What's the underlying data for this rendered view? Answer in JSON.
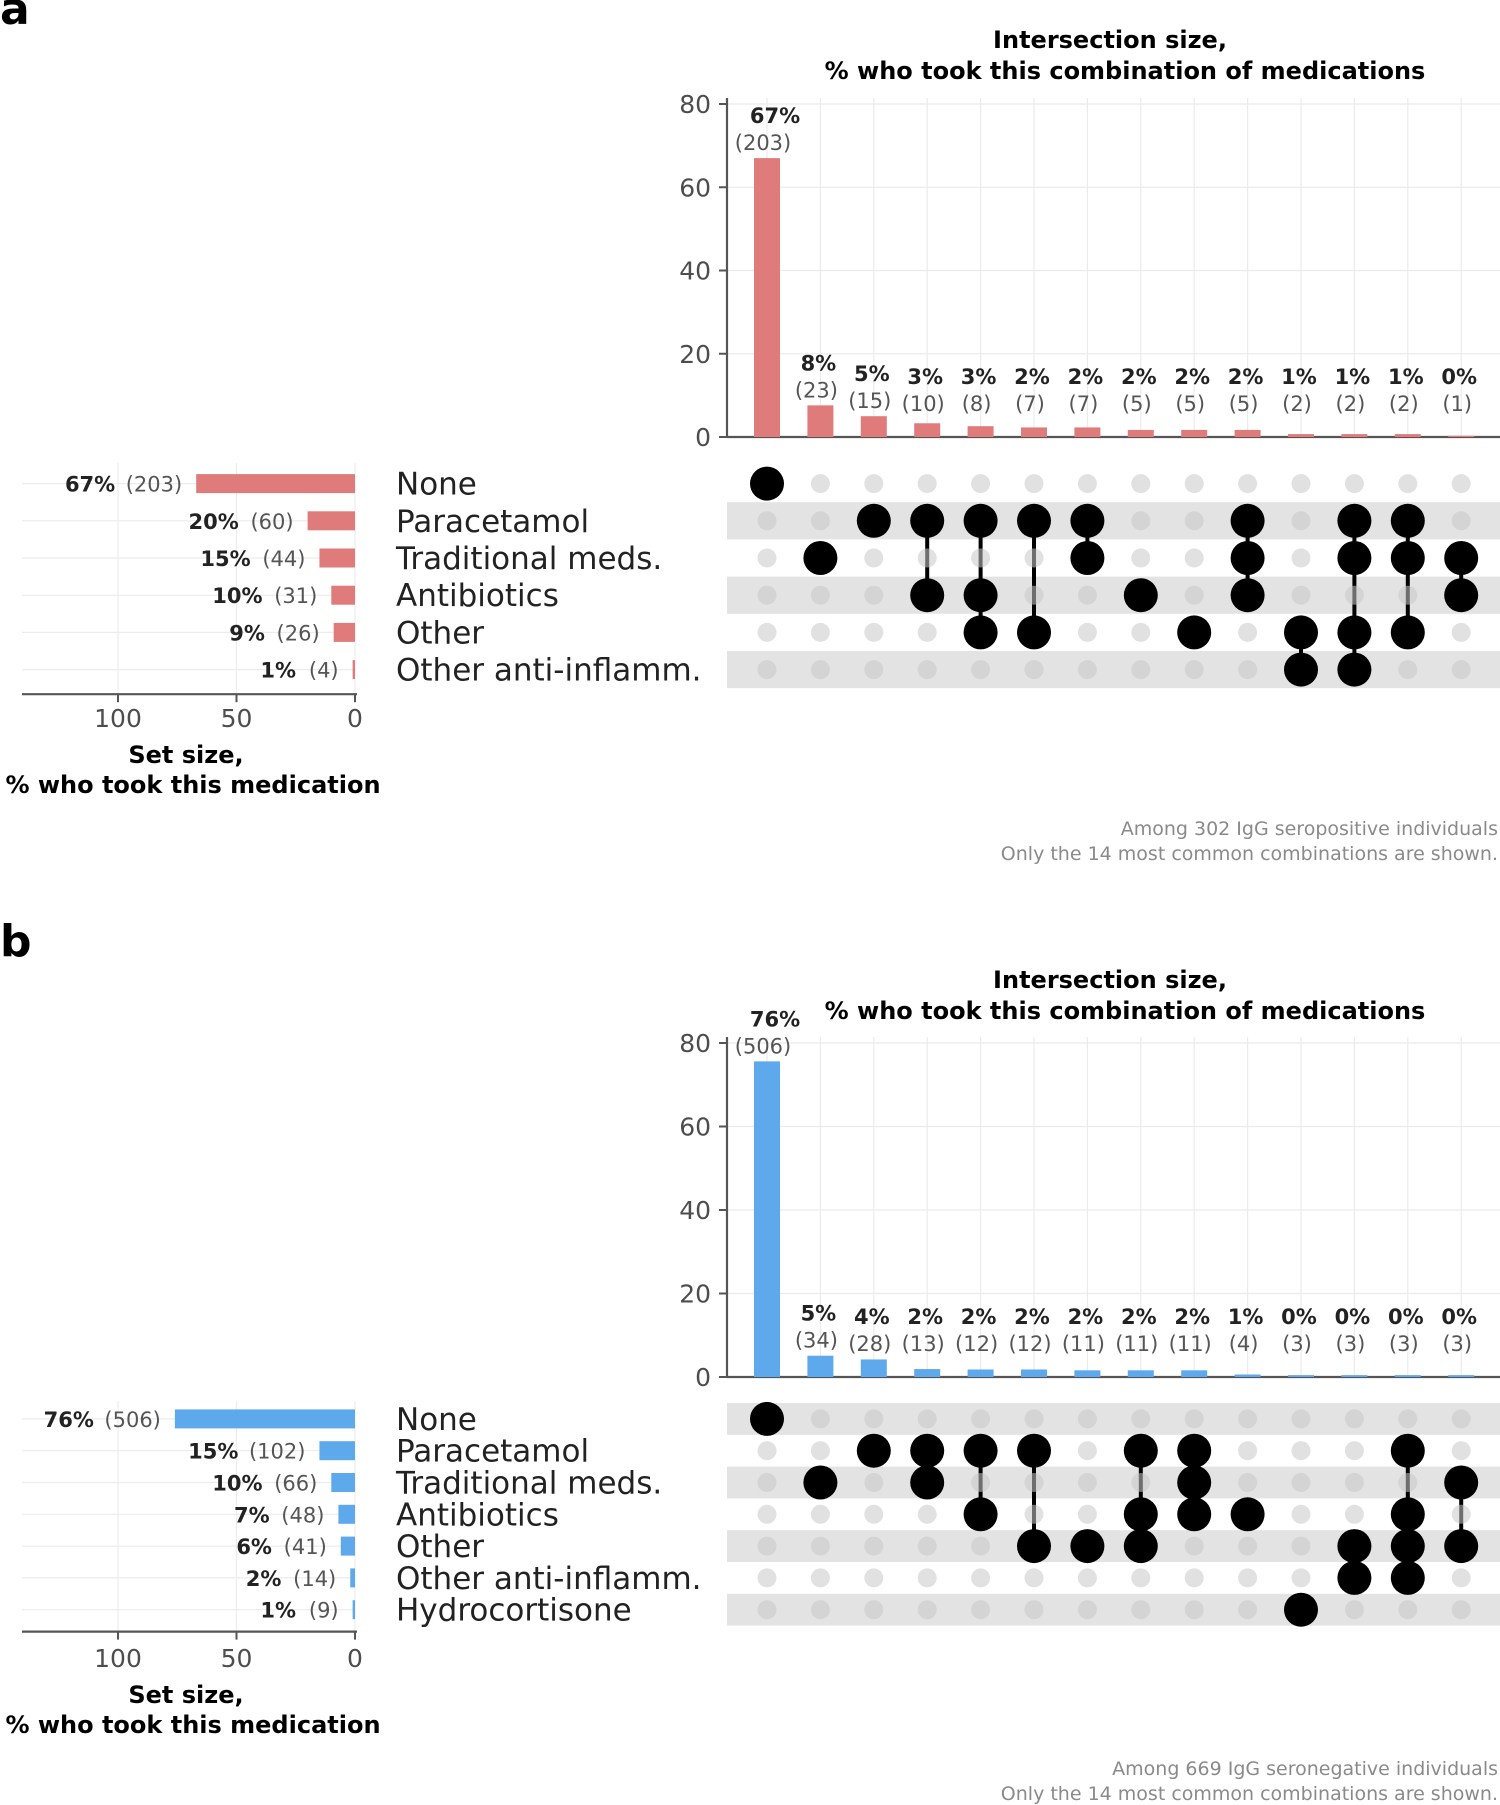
{
  "chart_data": [
    {
      "panel": "a",
      "type": "bar",
      "subtype": "upset",
      "color": "#e07b7b",
      "title_line1": "Intersection size,",
      "title_line2": "% who took this combination of medications",
      "set_title_line1": "Set size,",
      "set_title_line2": "% who took this medication",
      "ylim": [
        0,
        80
      ],
      "yticks": [
        "0",
        "20",
        "40",
        "60",
        "80"
      ],
      "set_ticks": [
        "100",
        "50",
        "0"
      ],
      "set_xlim": [
        0,
        140
      ],
      "sets": [
        {
          "name": "None",
          "value": 67,
          "pct": "67%",
          "count": "(203)"
        },
        {
          "name": "Paracetamol",
          "value": 20,
          "pct": "20%",
          "count": "(60)"
        },
        {
          "name": "Traditional meds.",
          "value": 15,
          "pct": "15%",
          "count": "(44)"
        },
        {
          "name": "Antibiotics",
          "value": 10,
          "pct": "10%",
          "count": "(31)"
        },
        {
          "name": "Other",
          "value": 9,
          "pct": "9%",
          "count": "(26)"
        },
        {
          "name": "Other anti-inflamm.",
          "value": 1,
          "pct": "1%",
          "count": "(4)"
        }
      ],
      "intersections": [
        {
          "value": 67,
          "pct": "67%",
          "count": "(203)",
          "members": [
            0
          ]
        },
        {
          "value": 7.6,
          "pct": "8%",
          "count": "(23)",
          "members": [
            2
          ]
        },
        {
          "value": 5,
          "pct": "5%",
          "count": "(15)",
          "members": [
            1
          ]
        },
        {
          "value": 3.3,
          "pct": "3%",
          "count": "(10)",
          "members": [
            1,
            3
          ]
        },
        {
          "value": 2.6,
          "pct": "3%",
          "count": "(8)",
          "members": [
            1,
            3,
            4
          ]
        },
        {
          "value": 2.3,
          "pct": "2%",
          "count": "(7)",
          "members": [
            1,
            4
          ]
        },
        {
          "value": 2.3,
          "pct": "2%",
          "count": "(7)",
          "members": [
            1,
            2
          ]
        },
        {
          "value": 1.7,
          "pct": "2%",
          "count": "(5)",
          "members": [
            3
          ]
        },
        {
          "value": 1.7,
          "pct": "2%",
          "count": "(5)",
          "members": [
            4
          ]
        },
        {
          "value": 1.7,
          "pct": "2%",
          "count": "(5)",
          "members": [
            1,
            2,
            3
          ]
        },
        {
          "value": 0.7,
          "pct": "1%",
          "count": "(2)",
          "members": [
            4,
            5
          ]
        },
        {
          "value": 0.7,
          "pct": "1%",
          "count": "(2)",
          "members": [
            1,
            2,
            4,
            5
          ]
        },
        {
          "value": 0.7,
          "pct": "1%",
          "count": "(2)",
          "members": [
            1,
            2,
            4
          ]
        },
        {
          "value": 0.3,
          "pct": "0%",
          "count": "(1)",
          "members": [
            2,
            3
          ]
        }
      ],
      "caption_line1": "Among 302 IgG seropositive individuals",
      "caption_line2": "Only the 14 most common combinations are shown."
    },
    {
      "panel": "b",
      "type": "bar",
      "subtype": "upset",
      "color": "#5ea8ec",
      "title_line1": "Intersection size,",
      "title_line2": "% who took this combination of medications",
      "set_title_line1": "Set size,",
      "set_title_line2": "% who took this medication",
      "ylim": [
        0,
        80
      ],
      "yticks": [
        "0",
        "20",
        "40",
        "60",
        "80"
      ],
      "set_ticks": [
        "100",
        "50",
        "0"
      ],
      "set_xlim": [
        0,
        140
      ],
      "sets": [
        {
          "name": "None",
          "value": 76,
          "pct": "76%",
          "count": "(506)"
        },
        {
          "name": "Paracetamol",
          "value": 15,
          "pct": "15%",
          "count": "(102)"
        },
        {
          "name": "Traditional meds.",
          "value": 10,
          "pct": "10%",
          "count": "(66)"
        },
        {
          "name": "Antibiotics",
          "value": 7,
          "pct": "7%",
          "count": "(48)"
        },
        {
          "name": "Other",
          "value": 6,
          "pct": "6%",
          "count": "(41)"
        },
        {
          "name": "Other anti-inflamm.",
          "value": 2,
          "pct": "2%",
          "count": "(14)"
        },
        {
          "name": "Hydrocortisone",
          "value": 1,
          "pct": "1%",
          "count": "(9)"
        }
      ],
      "intersections": [
        {
          "value": 75.6,
          "pct": "76%",
          "count": "(506)",
          "members": [
            0
          ]
        },
        {
          "value": 5.1,
          "pct": "5%",
          "count": "(34)",
          "members": [
            2
          ]
        },
        {
          "value": 4.2,
          "pct": "4%",
          "count": "(28)",
          "members": [
            1
          ]
        },
        {
          "value": 1.9,
          "pct": "2%",
          "count": "(13)",
          "members": [
            1,
            2
          ]
        },
        {
          "value": 1.8,
          "pct": "2%",
          "count": "(12)",
          "members": [
            1,
            3
          ]
        },
        {
          "value": 1.8,
          "pct": "2%",
          "count": "(12)",
          "members": [
            1,
            4
          ]
        },
        {
          "value": 1.6,
          "pct": "2%",
          "count": "(11)",
          "members": [
            4
          ]
        },
        {
          "value": 1.6,
          "pct": "2%",
          "count": "(11)",
          "members": [
            1,
            3,
            4
          ]
        },
        {
          "value": 1.6,
          "pct": "2%",
          "count": "(11)",
          "members": [
            1,
            2,
            3
          ]
        },
        {
          "value": 0.6,
          "pct": "1%",
          "count": "(4)",
          "members": [
            3
          ]
        },
        {
          "value": 0.45,
          "pct": "0%",
          "count": "(3)",
          "members": [
            6
          ]
        },
        {
          "value": 0.45,
          "pct": "0%",
          "count": "(3)",
          "members": [
            4,
            5
          ]
        },
        {
          "value": 0.45,
          "pct": "0%",
          "count": "(3)",
          "members": [
            1,
            3,
            4,
            5
          ]
        },
        {
          "value": 0.45,
          "pct": "0%",
          "count": "(3)",
          "members": [
            2,
            4
          ]
        }
      ],
      "caption_line1": "Among 669 IgG seronegative individuals",
      "caption_line2": "Only the 14 most common combinations are shown."
    }
  ]
}
